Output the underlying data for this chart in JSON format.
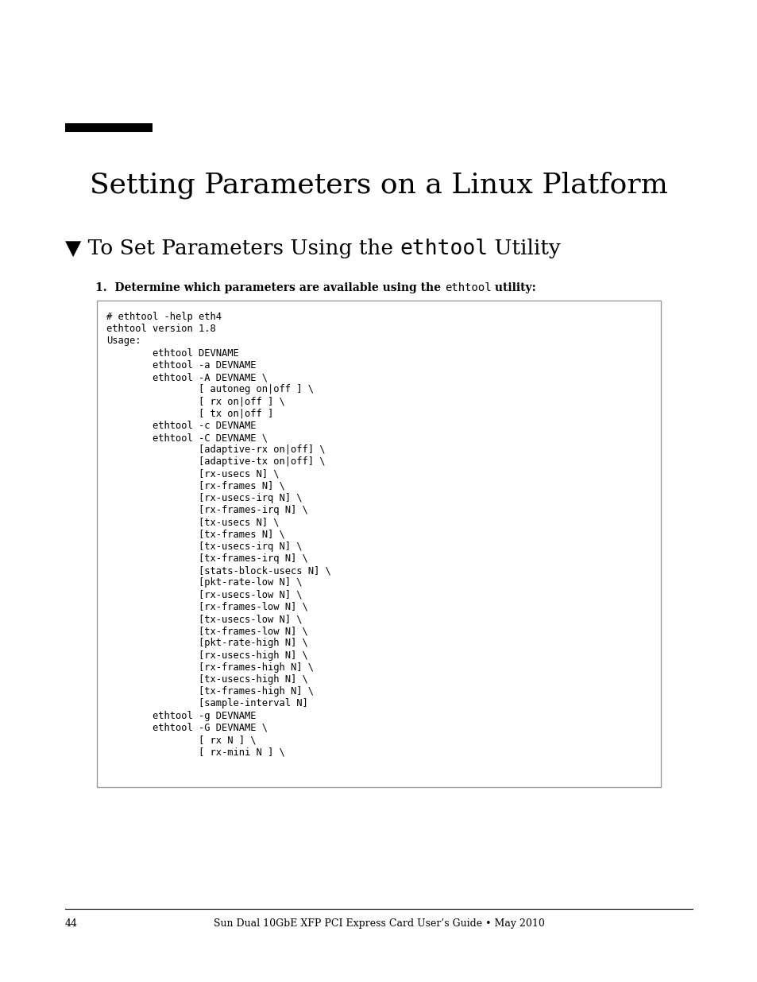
{
  "page_bg": "#ffffff",
  "title": "Setting Parameters on a Linux Platform",
  "section_heading_part1": "▼ To Set Parameters Using the ",
  "section_heading_mono": "ethtool",
  "section_heading_part2": " Utility",
  "step_bold1": "1.  Determine which parameters are available using the ",
  "step_mono": "ethtool",
  "step_bold2": " utility:",
  "code_lines": [
    "# ethtool -help eth4",
    "ethtool version 1.8",
    "Usage:",
    "        ethtool DEVNAME",
    "        ethtool -a DEVNAME",
    "        ethtool -A DEVNAME \\",
    "                [ autoneg on|off ] \\",
    "                [ rx on|off ] \\",
    "                [ tx on|off ]",
    "        ethtool -c DEVNAME",
    "        ethtool -C DEVNAME \\",
    "                [adaptive-rx on|off] \\",
    "                [adaptive-tx on|off] \\",
    "                [rx-usecs N] \\",
    "                [rx-frames N] \\",
    "                [rx-usecs-irq N] \\",
    "                [rx-frames-irq N] \\",
    "                [tx-usecs N] \\",
    "                [tx-frames N] \\",
    "                [tx-usecs-irq N] \\",
    "                [tx-frames-irq N] \\",
    "                [stats-block-usecs N] \\",
    "                [pkt-rate-low N] \\",
    "                [rx-usecs-low N] \\",
    "                [rx-frames-low N] \\",
    "                [tx-usecs-low N] \\",
    "                [tx-frames-low N] \\",
    "                [pkt-rate-high N] \\",
    "                [rx-usecs-high N] \\",
    "                [rx-frames-high N] \\",
    "                [tx-usecs-high N] \\",
    "                [tx-frames-high N] \\",
    "                [sample-interval N]",
    "        ethtool -g DEVNAME",
    "        ethtool -G DEVNAME \\",
    "                [ rx N ] \\",
    "                [ rx-mini N ] \\"
  ],
  "footer_page": "44",
  "footer_text": "Sun Dual 10GbE XFP PCI Express Card User’s Guide • May 2010"
}
